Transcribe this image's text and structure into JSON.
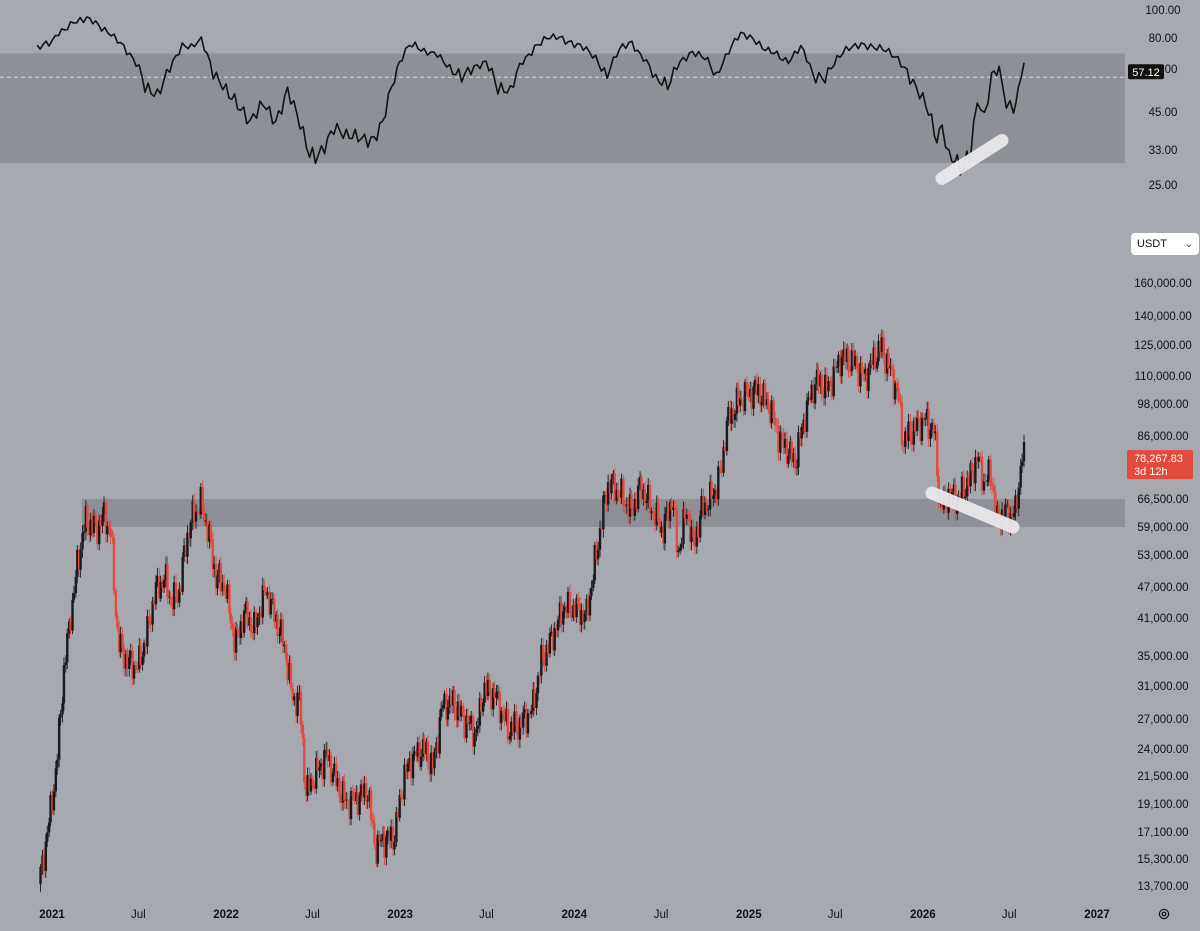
{
  "currency_selector": {
    "value": "USDT",
    "chevron": "chevron-down-icon"
  },
  "settings": {
    "icon": "gear-icon"
  },
  "colors": {
    "background": "#a7a9b1",
    "zone": "#8e9098",
    "bull": "#1a1a1e",
    "bear": "#e24a3b",
    "rsi_line": "#111111",
    "highlight": "#e9e9ec",
    "price_tag": "#e24a3b",
    "rsi_tag": "#111111"
  },
  "chart_data": [
    {
      "type": "line",
      "name": "RSI panel",
      "y_ticks": [
        "100.00",
        "80.00",
        "60.00",
        "45.00",
        "33.00",
        "25.00"
      ],
      "y_tick_values": [
        100,
        80,
        60,
        45,
        33,
        25
      ],
      "ylim": [
        23,
        100
      ],
      "band": [
        30,
        70
      ],
      "midline": 57.12,
      "current_label": "57.12",
      "x": [
        "2020-12-01",
        "2021-01-01",
        "2021-01-15",
        "2021-02-15",
        "2021-03-15",
        "2021-04-15",
        "2021-05-05",
        "2021-05-25",
        "2021-06-20",
        "2021-07-15",
        "2021-08-10",
        "2021-09-05",
        "2021-10-01",
        "2021-10-20",
        "2021-11-10",
        "2021-12-05",
        "2022-01-01",
        "2022-01-25",
        "2022-02-20",
        "2022-03-20",
        "2022-04-15",
        "2022-05-10",
        "2022-06-05",
        "2022-06-25",
        "2022-07-20",
        "2022-08-15",
        "2022-09-10",
        "2022-10-05",
        "2022-11-01",
        "2022-11-25",
        "2022-12-20",
        "2023-01-05",
        "2023-01-20",
        "2023-02-20",
        "2023-03-20",
        "2023-04-15",
        "2023-05-10",
        "2023-06-05",
        "2023-06-30",
        "2023-07-25",
        "2023-08-20",
        "2023-09-15",
        "2023-10-10",
        "2023-11-05",
        "2023-12-01",
        "2023-12-26",
        "2024-01-20",
        "2024-02-15",
        "2024-03-10",
        "2024-04-05",
        "2024-05-01",
        "2024-05-25",
        "2024-06-20",
        "2024-07-15",
        "2024-08-10",
        "2024-09-05",
        "2024-10-01",
        "2024-10-25",
        "2024-11-20",
        "2024-12-15",
        "2025-01-10",
        "2025-02-05",
        "2025-03-01",
        "2025-03-25",
        "2025-04-20",
        "2025-05-15",
        "2025-06-10",
        "2025-07-05",
        "2025-07-30",
        "2025-08-25",
        "2025-09-20",
        "2025-10-15",
        "2025-11-10",
        "2025-12-05",
        "2026-01-01",
        "2026-01-25",
        "2026-02-10",
        "2026-02-25",
        "2026-03-20",
        "2026-04-10",
        "2026-04-25",
        "2026-05-10",
        "2026-05-25",
        "2026-06-10",
        "2026-06-25",
        "2026-07-10",
        "2026-07-20",
        "2026-08-01"
      ],
      "values": [
        72,
        79,
        85,
        90,
        93,
        88,
        84,
        78,
        66,
        53,
        52,
        62,
        74,
        73,
        78,
        60,
        54,
        46,
        42,
        48,
        43,
        52,
        40,
        31,
        34,
        40,
        36,
        38,
        37,
        40,
        58,
        66,
        75,
        72,
        70,
        62,
        56,
        60,
        66,
        52,
        51,
        66,
        74,
        79,
        80,
        78,
        73,
        66,
        58,
        72,
        76,
        68,
        55,
        54,
        66,
        71,
        66,
        58,
        72,
        82,
        80,
        74,
        68,
        66,
        74,
        57,
        58,
        66,
        73,
        77,
        75,
        71,
        66,
        58,
        50,
        38,
        39,
        31,
        29,
        33,
        48,
        42,
        56,
        62,
        48,
        46,
        52,
        64
      ]
    },
    {
      "type": "candlestick",
      "name": "Price panel (USDT)",
      "y_ticks": [
        "160,000.00",
        "140,000.00",
        "125,000.00",
        "110,000.00",
        "98,000.00",
        "86,000.00",
        "66,500.00",
        "59,000.00",
        "53,000.00",
        "47,000.00",
        "41,000.00",
        "35,000.00",
        "31,000.00",
        "27,000.00",
        "24,000.00",
        "21,500.00",
        "19,100.00",
        "17,100.00",
        "15,300.00",
        "13,700.00"
      ],
      "y_tick_values": [
        160000,
        140000,
        125000,
        110000,
        98000,
        86000,
        66500,
        59000,
        53000,
        47000,
        41000,
        35000,
        31000,
        27000,
        24000,
        21500,
        19100,
        17100,
        15300,
        13700
      ],
      "log_scale": true,
      "x_ticks": [
        "2021",
        "Jul",
        "2022",
        "Jul",
        "2023",
        "Jul",
        "2024",
        "Jul",
        "2025",
        "Jul",
        "2026",
        "Jul",
        "2027"
      ],
      "x_tick_dates": [
        "2021-01-01",
        "2021-07-01",
        "2022-01-01",
        "2022-07-01",
        "2023-01-01",
        "2023-07-01",
        "2024-01-01",
        "2024-07-01",
        "2025-01-01",
        "2025-07-01",
        "2026-01-01",
        "2026-07-01",
        "2027-01-01"
      ],
      "support_zone": [
        59000,
        66500
      ],
      "current_price": "78,267.83",
      "countdown": "3d 12h",
      "close_path": {
        "dates": [
          "2020-12-05",
          "2020-12-25",
          "2021-01-10",
          "2021-01-25",
          "2021-02-10",
          "2021-02-25",
          "2021-03-12",
          "2021-04-05",
          "2021-04-20",
          "2021-05-05",
          "2021-05-20",
          "2021-06-10",
          "2021-07-01",
          "2021-07-20",
          "2021-08-05",
          "2021-08-25",
          "2021-09-10",
          "2021-09-25",
          "2021-10-10",
          "2021-10-25",
          "2021-11-10",
          "2021-11-25",
          "2021-12-10",
          "2021-12-30",
          "2022-01-20",
          "2022-02-10",
          "2022-03-01",
          "2022-03-25",
          "2022-04-15",
          "2022-05-05",
          "2022-05-20",
          "2022-06-05",
          "2022-06-18",
          "2022-07-10",
          "2022-08-01",
          "2022-08-20",
          "2022-09-10",
          "2022-10-01",
          "2022-10-25",
          "2022-11-10",
          "2022-11-25",
          "2022-12-20",
          "2023-01-10",
          "2023-01-25",
          "2023-02-20",
          "2023-03-12",
          "2023-03-30",
          "2023-04-20",
          "2023-05-15",
          "2023-06-10",
          "2023-06-25",
          "2023-07-20",
          "2023-08-15",
          "2023-09-10",
          "2023-10-05",
          "2023-10-25",
          "2023-11-15",
          "2023-12-10",
          "2024-01-10",
          "2024-01-25",
          "2024-02-15",
          "2024-03-05",
          "2024-03-14",
          "2024-04-05",
          "2024-04-30",
          "2024-05-20",
          "2024-06-10",
          "2024-07-05",
          "2024-07-25",
          "2024-08-05",
          "2024-08-25",
          "2024-09-06",
          "2024-09-25",
          "2024-10-20",
          "2024-11-05",
          "2024-11-15",
          "2024-12-05",
          "2024-12-20",
          "2025-01-20",
          "2025-02-15",
          "2025-03-05",
          "2025-04-08",
          "2025-04-30",
          "2025-05-22",
          "2025-06-15",
          "2025-07-14",
          "2025-08-10",
          "2025-09-01",
          "2025-09-25",
          "2025-10-06",
          "2025-10-25",
          "2025-11-10",
          "2025-11-21",
          "2025-12-10",
          "2026-01-05",
          "2026-01-25",
          "2026-02-06",
          "2026-02-25",
          "2026-03-15",
          "2026-04-01",
          "2026-04-15",
          "2026-04-25",
          "2026-05-10",
          "2026-05-25",
          "2026-06-05",
          "2026-06-20",
          "2026-07-01",
          "2026-07-15",
          "2026-07-28",
          "2026-08-01"
        ],
        "values": [
          13800,
          17500,
          22000,
          32000,
          42000,
          52000,
          60500,
          58500,
          62000,
          57500,
          37000,
          34000,
          33500,
          38500,
          46000,
          48500,
          44000,
          46000,
          56000,
          62500,
          65000,
          58000,
          49000,
          47000,
          36800,
          42000,
          39000,
          46500,
          41000,
          36000,
          29500,
          29000,
          20000,
          21800,
          23400,
          21000,
          19200,
          19500,
          20300,
          16000,
          16500,
          16800,
          21500,
          23000,
          24000,
          22300,
          28500,
          29000,
          27000,
          25500,
          30500,
          29800,
          26000,
          26500,
          28000,
          34500,
          37500,
          43000,
          42500,
          41000,
          52000,
          66000,
          71000,
          68000,
          63000,
          70000,
          64000,
          58000,
          67000,
          53000,
          64000,
          54500,
          63500,
          68000,
          75000,
          90000,
          97500,
          101000,
          104000,
          96000,
          86000,
          77000,
          94500,
          108000,
          104000,
          119000,
          116000,
          109000,
          120000,
          124000,
          112000,
          102000,
          84000,
          88000,
          92000,
          88000,
          64000,
          68000,
          66000,
          70000,
          74000,
          79000,
          71000,
          74000,
          60500,
          63000,
          62000,
          63000,
          80000,
          78300
        ]
      }
    }
  ]
}
